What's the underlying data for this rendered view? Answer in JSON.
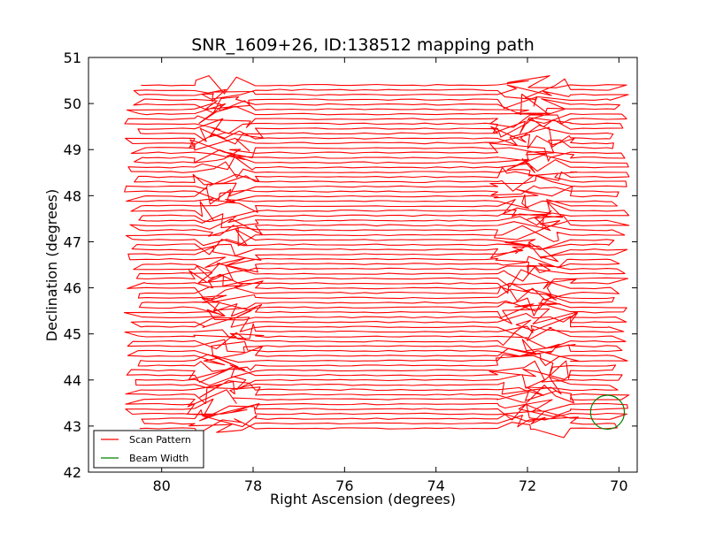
{
  "chart_data": {
    "type": "line",
    "title": "SNR_1609+26, ID:138512 mapping path",
    "xlabel": "Right Ascension (degrees)",
    "ylabel": "Declination (degrees)",
    "xlim": [
      81.6,
      69.6
    ],
    "ylim": [
      42,
      51
    ],
    "x_reversed": true,
    "xticks": [
      80,
      78,
      76,
      74,
      72,
      70
    ],
    "yticks": [
      42,
      43,
      44,
      45,
      46,
      47,
      48,
      49,
      50,
      51
    ],
    "grid": false,
    "legend_position": "lower-left",
    "series": [
      {
        "name": "Scan Pattern",
        "color": "#ff0000",
        "pattern": "raster",
        "ra_range": [
          80.6,
          70.0
        ],
        "dec_range": [
          42.95,
          50.4
        ],
        "row_count": 72
      },
      {
        "name": "Beam Width",
        "color": "#008000",
        "shape": "circle",
        "center_ra": 70.25,
        "center_dec": 43.3,
        "radius_deg": 0.37
      }
    ]
  }
}
